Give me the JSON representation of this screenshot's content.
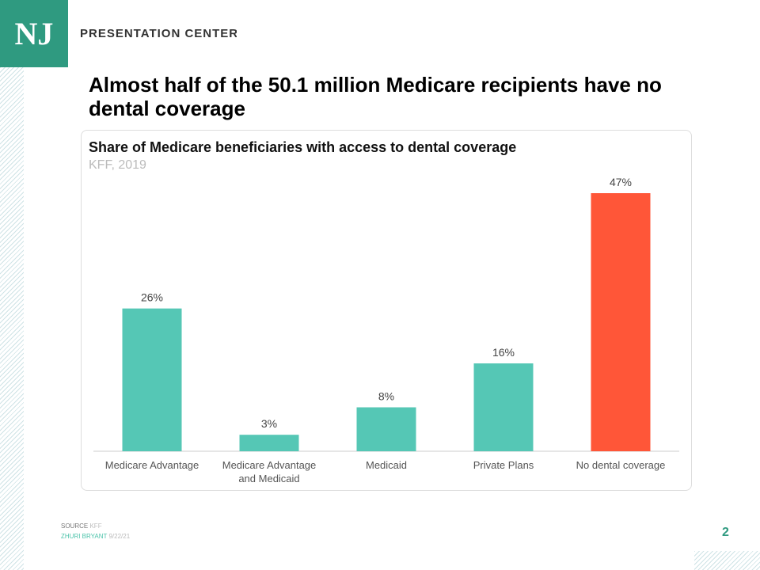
{
  "header": {
    "logo": "NJ",
    "brand": "PRESENTATION CENTER"
  },
  "title": "Almost half of the 50.1 million Medicare recipients have no dental coverage",
  "chart_data": {
    "type": "bar",
    "title": "Share of Medicare beneficiaries with access to dental coverage",
    "subtitle": "KFF, 2019",
    "categories": [
      "Medicare Advantage",
      "Medicare Advantage and Medicaid",
      "Medicaid",
      "Private Plans",
      "No dental coverage"
    ],
    "values": [
      26,
      3,
      8,
      16,
      47
    ],
    "data_labels": [
      "26%",
      "3%",
      "8%",
      "16%",
      "47%"
    ],
    "colors": [
      "#55c7b5",
      "#55c7b5",
      "#55c7b5",
      "#55c7b5",
      "#ff5638"
    ],
    "ylim": [
      0,
      47
    ],
    "grid": false,
    "xlabel": "",
    "ylabel": ""
  },
  "footer": {
    "source_label": "SOURCE",
    "source": "KFF",
    "author": "ZHURI BRYANT",
    "date": "9/22/21",
    "page": "2"
  }
}
